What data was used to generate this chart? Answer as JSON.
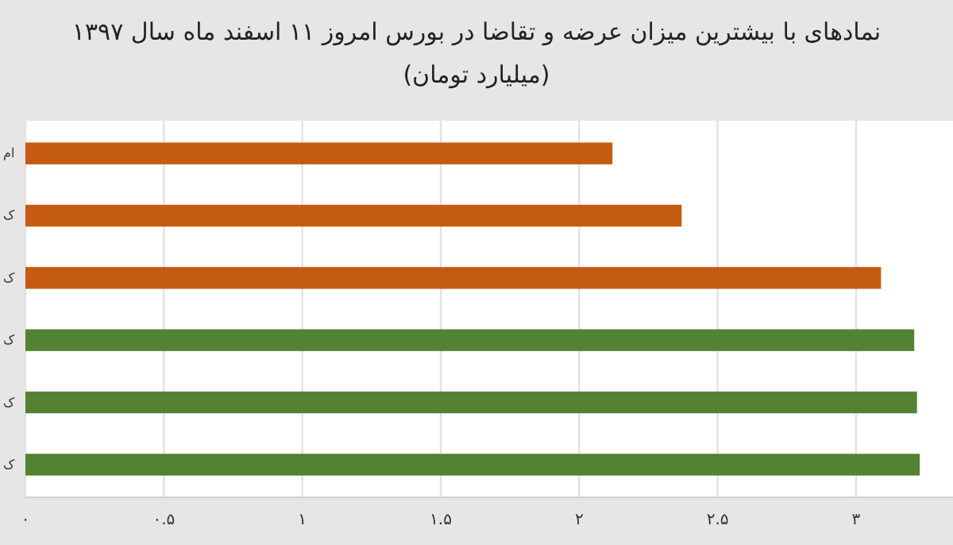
{
  "chart_data": {
    "type": "bar",
    "orientation": "horizontal",
    "title": "نمادهای با بیشترین میزان عرضه و تقاضا در بورس امروز ۱۱ اسفند ماه سال ۱۳۹۷",
    "subtitle": "(میلیارد تومان)",
    "categories": [
      "ام",
      "ک",
      "ک",
      "ک",
      "ک",
      "ک"
    ],
    "values": [
      2.12,
      2.37,
      3.09,
      3.21,
      3.22,
      3.23
    ],
    "colors": [
      "#c55a11",
      "#c55a11",
      "#c55a11",
      "#548235",
      "#548235",
      "#548235"
    ],
    "xlim": [
      0,
      3.35
    ],
    "xticks": [
      {
        "value": 0,
        "label": "۰"
      },
      {
        "value": 0.5,
        "label": "۰.۵"
      },
      {
        "value": 1,
        "label": "۱"
      },
      {
        "value": 1.5,
        "label": "۱.۵"
      },
      {
        "value": 2,
        "label": "۲"
      },
      {
        "value": 2.5,
        "label": "۲.۵"
      },
      {
        "value": 3,
        "label": "۳"
      }
    ],
    "grid": "x"
  }
}
